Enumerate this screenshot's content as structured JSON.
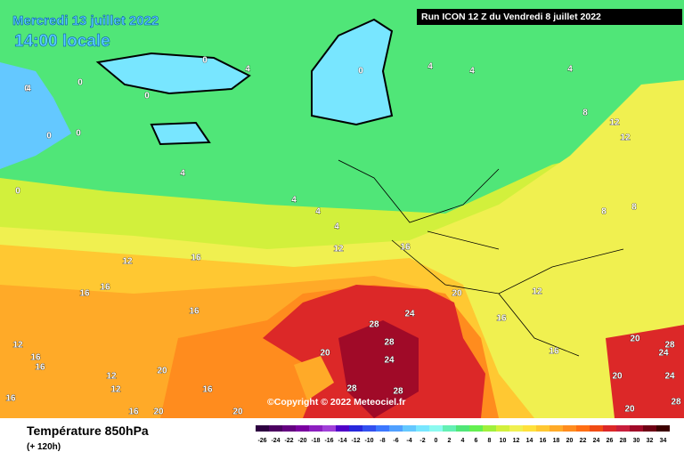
{
  "header": {
    "date": "Mercredi 13 juillet 2022",
    "time": "14:00 locale",
    "run": "Run ICON 12 Z du Vendredi 8 juillet 2022"
  },
  "copyright": "©Copyright © 2022 Meteociel.fr",
  "footer": {
    "title": "Température 850hPa",
    "lead": "(+ 120h)"
  },
  "legend": {
    "values": [
      -26,
      -24,
      -22,
      -20,
      -18,
      -16,
      -14,
      -12,
      -10,
      -8,
      -6,
      -4,
      -2,
      0,
      2,
      4,
      6,
      8,
      10,
      12,
      14,
      16,
      18,
      20,
      22,
      24,
      26,
      28,
      30,
      32,
      34
    ],
    "colors": [
      "#2d0040",
      "#4b0060",
      "#640080",
      "#7a00a0",
      "#8c1fc0",
      "#a040d8",
      "#5000c8",
      "#2828dc",
      "#3250f0",
      "#3c78ff",
      "#50a0ff",
      "#64c8ff",
      "#78e6ff",
      "#8cfaf0",
      "#64f0b4",
      "#50e678",
      "#64f050",
      "#a0f03c",
      "#d2f03c",
      "#f0f050",
      "#ffe13c",
      "#ffc832",
      "#ffaa28",
      "#ff8c1e",
      "#ff6e14",
      "#f04b14",
      "#dc2828",
      "#c81e3c",
      "#a00a28",
      "#6e0014",
      "#3c0000"
    ]
  },
  "map": {
    "contour_labels": [
      0,
      0,
      0,
      4,
      0,
      4,
      0,
      0,
      0,
      4,
      0,
      4,
      4,
      4,
      8,
      12,
      12,
      4,
      4,
      4,
      12,
      16,
      12,
      16,
      16,
      16,
      16,
      12,
      16,
      16,
      12,
      12,
      20,
      16,
      20,
      28,
      24,
      28,
      24,
      28,
      28,
      20,
      16,
      12,
      8,
      8,
      16,
      20,
      24,
      28,
      24,
      20,
      20,
      28,
      16,
      20,
      20,
      16
    ]
  }
}
